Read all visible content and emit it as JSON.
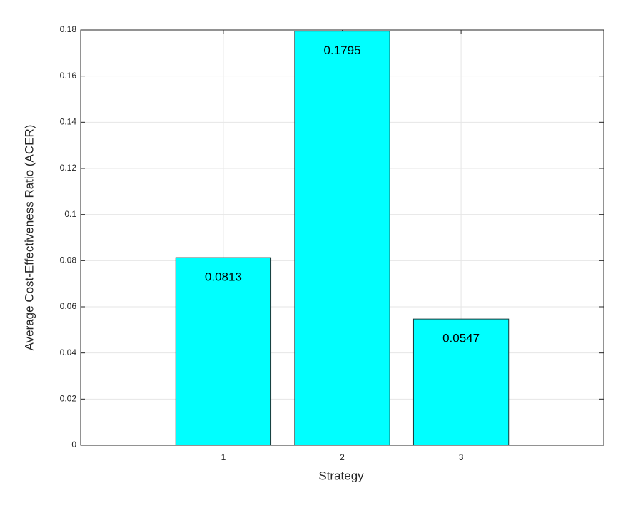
{
  "chart_data": {
    "type": "bar",
    "x_label": "Strategy",
    "y_label": "Average Cost-Effectiveness Ratio (ACER)",
    "x": [
      1,
      2,
      3
    ],
    "values": [
      0.0813,
      0.1795,
      0.0547
    ],
    "color": "#00ffff",
    "edge_color": "#1a3a3a",
    "xlim": [
      -0.2,
      4.2
    ],
    "xticks": [
      1,
      2,
      3
    ],
    "ylim": [
      0,
      0.18
    ],
    "yticks": [
      0,
      0.02,
      0.04,
      0.06,
      0.08,
      0.1,
      0.12,
      0.14,
      0.16,
      0.18
    ],
    "grid": true
  }
}
